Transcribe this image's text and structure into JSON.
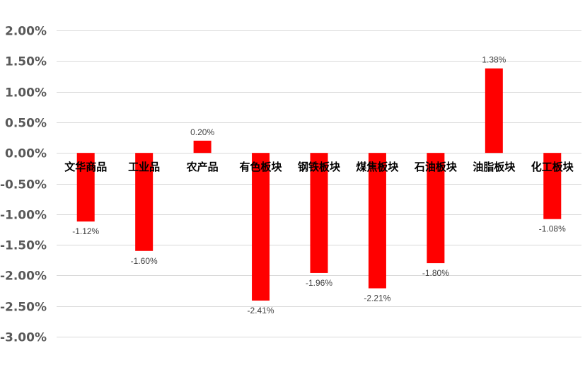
{
  "chart_data": {
    "type": "bar",
    "title": "",
    "xlabel": "",
    "ylabel": "",
    "categories": [
      "文华商品",
      "工业品",
      "农产品",
      "有色板块",
      "钢铁板块",
      "煤焦板块",
      "石油板块",
      "油脂板块",
      "化工板块"
    ],
    "values": [
      -1.12,
      -1.6,
      0.2,
      -2.41,
      -1.96,
      -2.21,
      -1.8,
      1.38,
      -1.08
    ],
    "data_labels": [
      "-1.12%",
      "-1.60%",
      "0.20%",
      "-2.41%",
      "-1.96%",
      "-2.21%",
      "-1.80%",
      "1.38%",
      "-1.08%"
    ],
    "ylim": [
      -3.0,
      2.0
    ],
    "yticks": [
      2.0,
      1.5,
      1.0,
      0.5,
      0.0,
      -0.5,
      -1.0,
      -1.5,
      -2.0,
      -2.5,
      -3.0
    ],
    "ytick_labels": [
      "2.00%",
      "1.50%",
      "1.00%",
      "0.50%",
      "0.00%",
      "-0.50%",
      "-1.00%",
      "-1.50%",
      "-2.00%",
      "-2.50%",
      "-3.00%"
    ],
    "grid": true,
    "legend": "none",
    "colors": {
      "bar": "#ff0000",
      "grid": "#d9d9d9",
      "tick_text": "#595959",
      "label_text": "#404040"
    }
  }
}
